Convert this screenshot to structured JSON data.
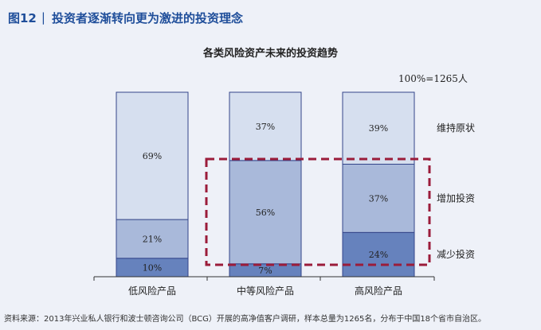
{
  "figure": {
    "number": "图12",
    "title": "投资者逐渐转向更为激进的投资理念"
  },
  "chart_data": {
    "type": "bar",
    "stacked": true,
    "title": "各类风险资产未来的投资趋势",
    "note": "100%=1265人",
    "categories": [
      "低风险产品",
      "中等风险产品",
      "高风险产品"
    ],
    "series": [
      {
        "name": "减少投资",
        "values": [
          10,
          7,
          24
        ],
        "labels": [
          "10%",
          "7%",
          "24%"
        ],
        "color": "#6682bd"
      },
      {
        "name": "增加投资",
        "values": [
          21,
          56,
          37
        ],
        "labels": [
          "21%",
          "56%",
          "37%"
        ],
        "color": "#a9b9da"
      },
      {
        "name": "维持原状",
        "values": [
          69,
          37,
          39
        ],
        "labels": [
          "69%",
          "37%",
          "39%"
        ],
        "color": "#d6dfef"
      }
    ],
    "ylim": [
      0,
      100
    ],
    "legend": "right",
    "highlight": "dashed box around 增加投资 and 减少投资 of 中等风险产品 and 高风险产品",
    "highlight_color": "#9b1c3a"
  },
  "source": "资料来源：2013年兴业私人银行和波士顿咨询公司（BCG）开展的高净值客户调研，样本总量为1265名，分布于中国18个省市自治区。"
}
